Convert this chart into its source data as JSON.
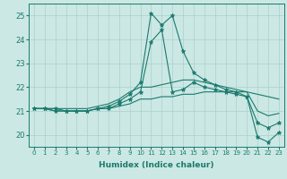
{
  "title": "",
  "xlabel": "Humidex (Indice chaleur)",
  "x": [
    0,
    1,
    2,
    3,
    4,
    5,
    6,
    7,
    8,
    9,
    10,
    11,
    12,
    13,
    14,
    15,
    16,
    17,
    18,
    19,
    20,
    21,
    22,
    23
  ],
  "line1": [
    21.1,
    21.1,
    21.1,
    21.0,
    21.0,
    21.0,
    21.1,
    21.2,
    21.4,
    21.7,
    22.2,
    25.1,
    24.6,
    25.0,
    23.5,
    22.6,
    22.3,
    22.1,
    21.9,
    21.8,
    21.6,
    19.9,
    19.7,
    20.1
  ],
  "line2": [
    21.1,
    21.1,
    21.0,
    21.0,
    21.0,
    21.0,
    21.1,
    21.1,
    21.3,
    21.5,
    21.8,
    23.9,
    24.4,
    21.8,
    21.9,
    22.2,
    22.0,
    21.9,
    21.8,
    21.7,
    21.6,
    20.5,
    20.3,
    20.5
  ],
  "line3": [
    21.1,
    21.1,
    21.1,
    21.1,
    21.1,
    21.1,
    21.2,
    21.3,
    21.5,
    21.8,
    22.0,
    22.0,
    22.1,
    22.2,
    22.3,
    22.3,
    22.2,
    22.1,
    22.0,
    21.9,
    21.8,
    21.7,
    21.6,
    21.5
  ],
  "line4": [
    21.1,
    21.1,
    21.0,
    21.0,
    21.0,
    21.0,
    21.1,
    21.1,
    21.2,
    21.3,
    21.5,
    21.5,
    21.6,
    21.6,
    21.7,
    21.7,
    21.8,
    21.8,
    21.8,
    21.8,
    21.8,
    21.0,
    20.8,
    20.9
  ],
  "line_color": "#1a7a6e",
  "bg_color": "#cce8e4",
  "grid_color": "#aad0ca",
  "ylim": [
    19.5,
    25.5
  ],
  "xlim": [
    -0.5,
    23.5
  ],
  "yticks": [
    20,
    21,
    22,
    23,
    24,
    25
  ],
  "xtick_fontsize": 5.0,
  "ytick_fontsize": 6.0,
  "xlabel_fontsize": 6.5
}
